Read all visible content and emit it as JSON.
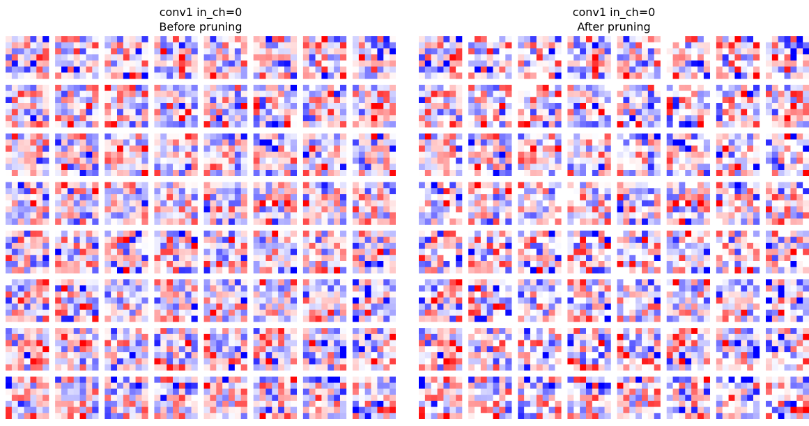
{
  "panels": [
    {
      "title_line1": "conv1 in_ch=0",
      "title_line2": "Before pruning"
    },
    {
      "title_line1": "conv1 in_ch=0",
      "title_line2": "After pruning"
    }
  ],
  "chart_data": {
    "type": "heatmap",
    "description_layout": "two panels, each an 8x8 grid of 7x7 kernel heatmaps",
    "grid_rows": 8,
    "grid_cols": 8,
    "kernel_size": 7,
    "colormap": [
      "#0000ff",
      "#ffffff",
      "#ff0000"
    ],
    "value_range": [
      -1,
      1
    ],
    "panels": [
      {
        "title": "conv1 in_ch=0\nBefore pruning",
        "random_seed": 1234
      },
      {
        "title": "conv1 in_ch=0\nAfter pruning",
        "random_seed": 1234,
        "pruned_fraction": 0.12
      }
    ],
    "colors": {
      "negative": "#0000ff",
      "zero": "#ffffff",
      "positive": "#ff0000"
    }
  }
}
